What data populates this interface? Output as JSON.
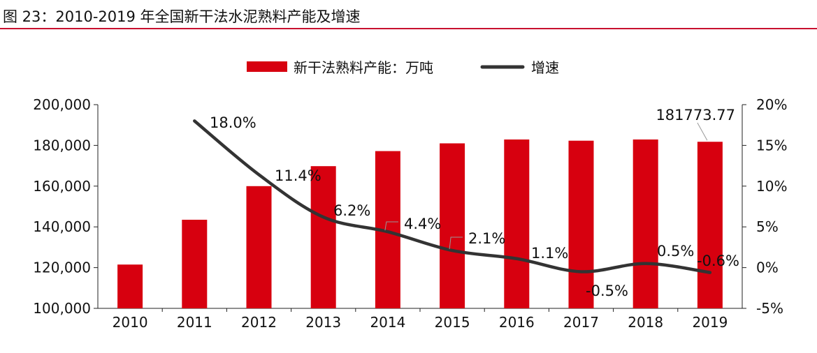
{
  "figure_title": "图 23：2010-2019 年全国新干法水泥熟料产能及增速",
  "colors": {
    "bar": "#d7000f",
    "line": "#333333",
    "title_rule": "#c8102e"
  },
  "chart_data": {
    "type": "bar",
    "categories": [
      "2010",
      "2011",
      "2012",
      "2013",
      "2014",
      "2015",
      "2016",
      "2017",
      "2018",
      "2019"
    ],
    "series": [
      {
        "name": "新干法熟料产能：万吨",
        "type": "bar",
        "axis": "left",
        "values": [
          121500,
          143500,
          160000,
          169800,
          177200,
          181000,
          182900,
          182300,
          182900,
          181773.77
        ]
      },
      {
        "name": "增速",
        "type": "line",
        "axis": "right",
        "values": [
          null,
          18.0,
          11.4,
          6.2,
          4.4,
          2.1,
          1.1,
          -0.5,
          0.5,
          -0.6
        ]
      }
    ],
    "left_axis": {
      "ylim": [
        100000,
        200000
      ],
      "ticks": [
        100000,
        120000,
        140000,
        160000,
        180000,
        200000
      ],
      "tick_labels": [
        "100,000",
        "120,000",
        "140,000",
        "160,000",
        "180,000",
        "200,000"
      ]
    },
    "right_axis": {
      "ylim": [
        -5,
        20
      ],
      "ticks": [
        -5,
        0,
        5,
        10,
        15,
        20
      ],
      "tick_labels": [
        "-5%",
        "0%",
        "5%",
        "10%",
        "15%",
        "20%"
      ]
    },
    "data_labels": {
      "line": [
        "",
        "18.0%",
        "11.4%",
        "6.2%",
        "4.4%",
        "2.1%",
        "1.1%",
        "-0.5%",
        "0.5%",
        "-0.6%"
      ],
      "bar_last": "181773.77"
    },
    "legend": {
      "position": "top",
      "entries": [
        "新干法熟料产能：万吨",
        "增速"
      ]
    },
    "grid": false
  }
}
